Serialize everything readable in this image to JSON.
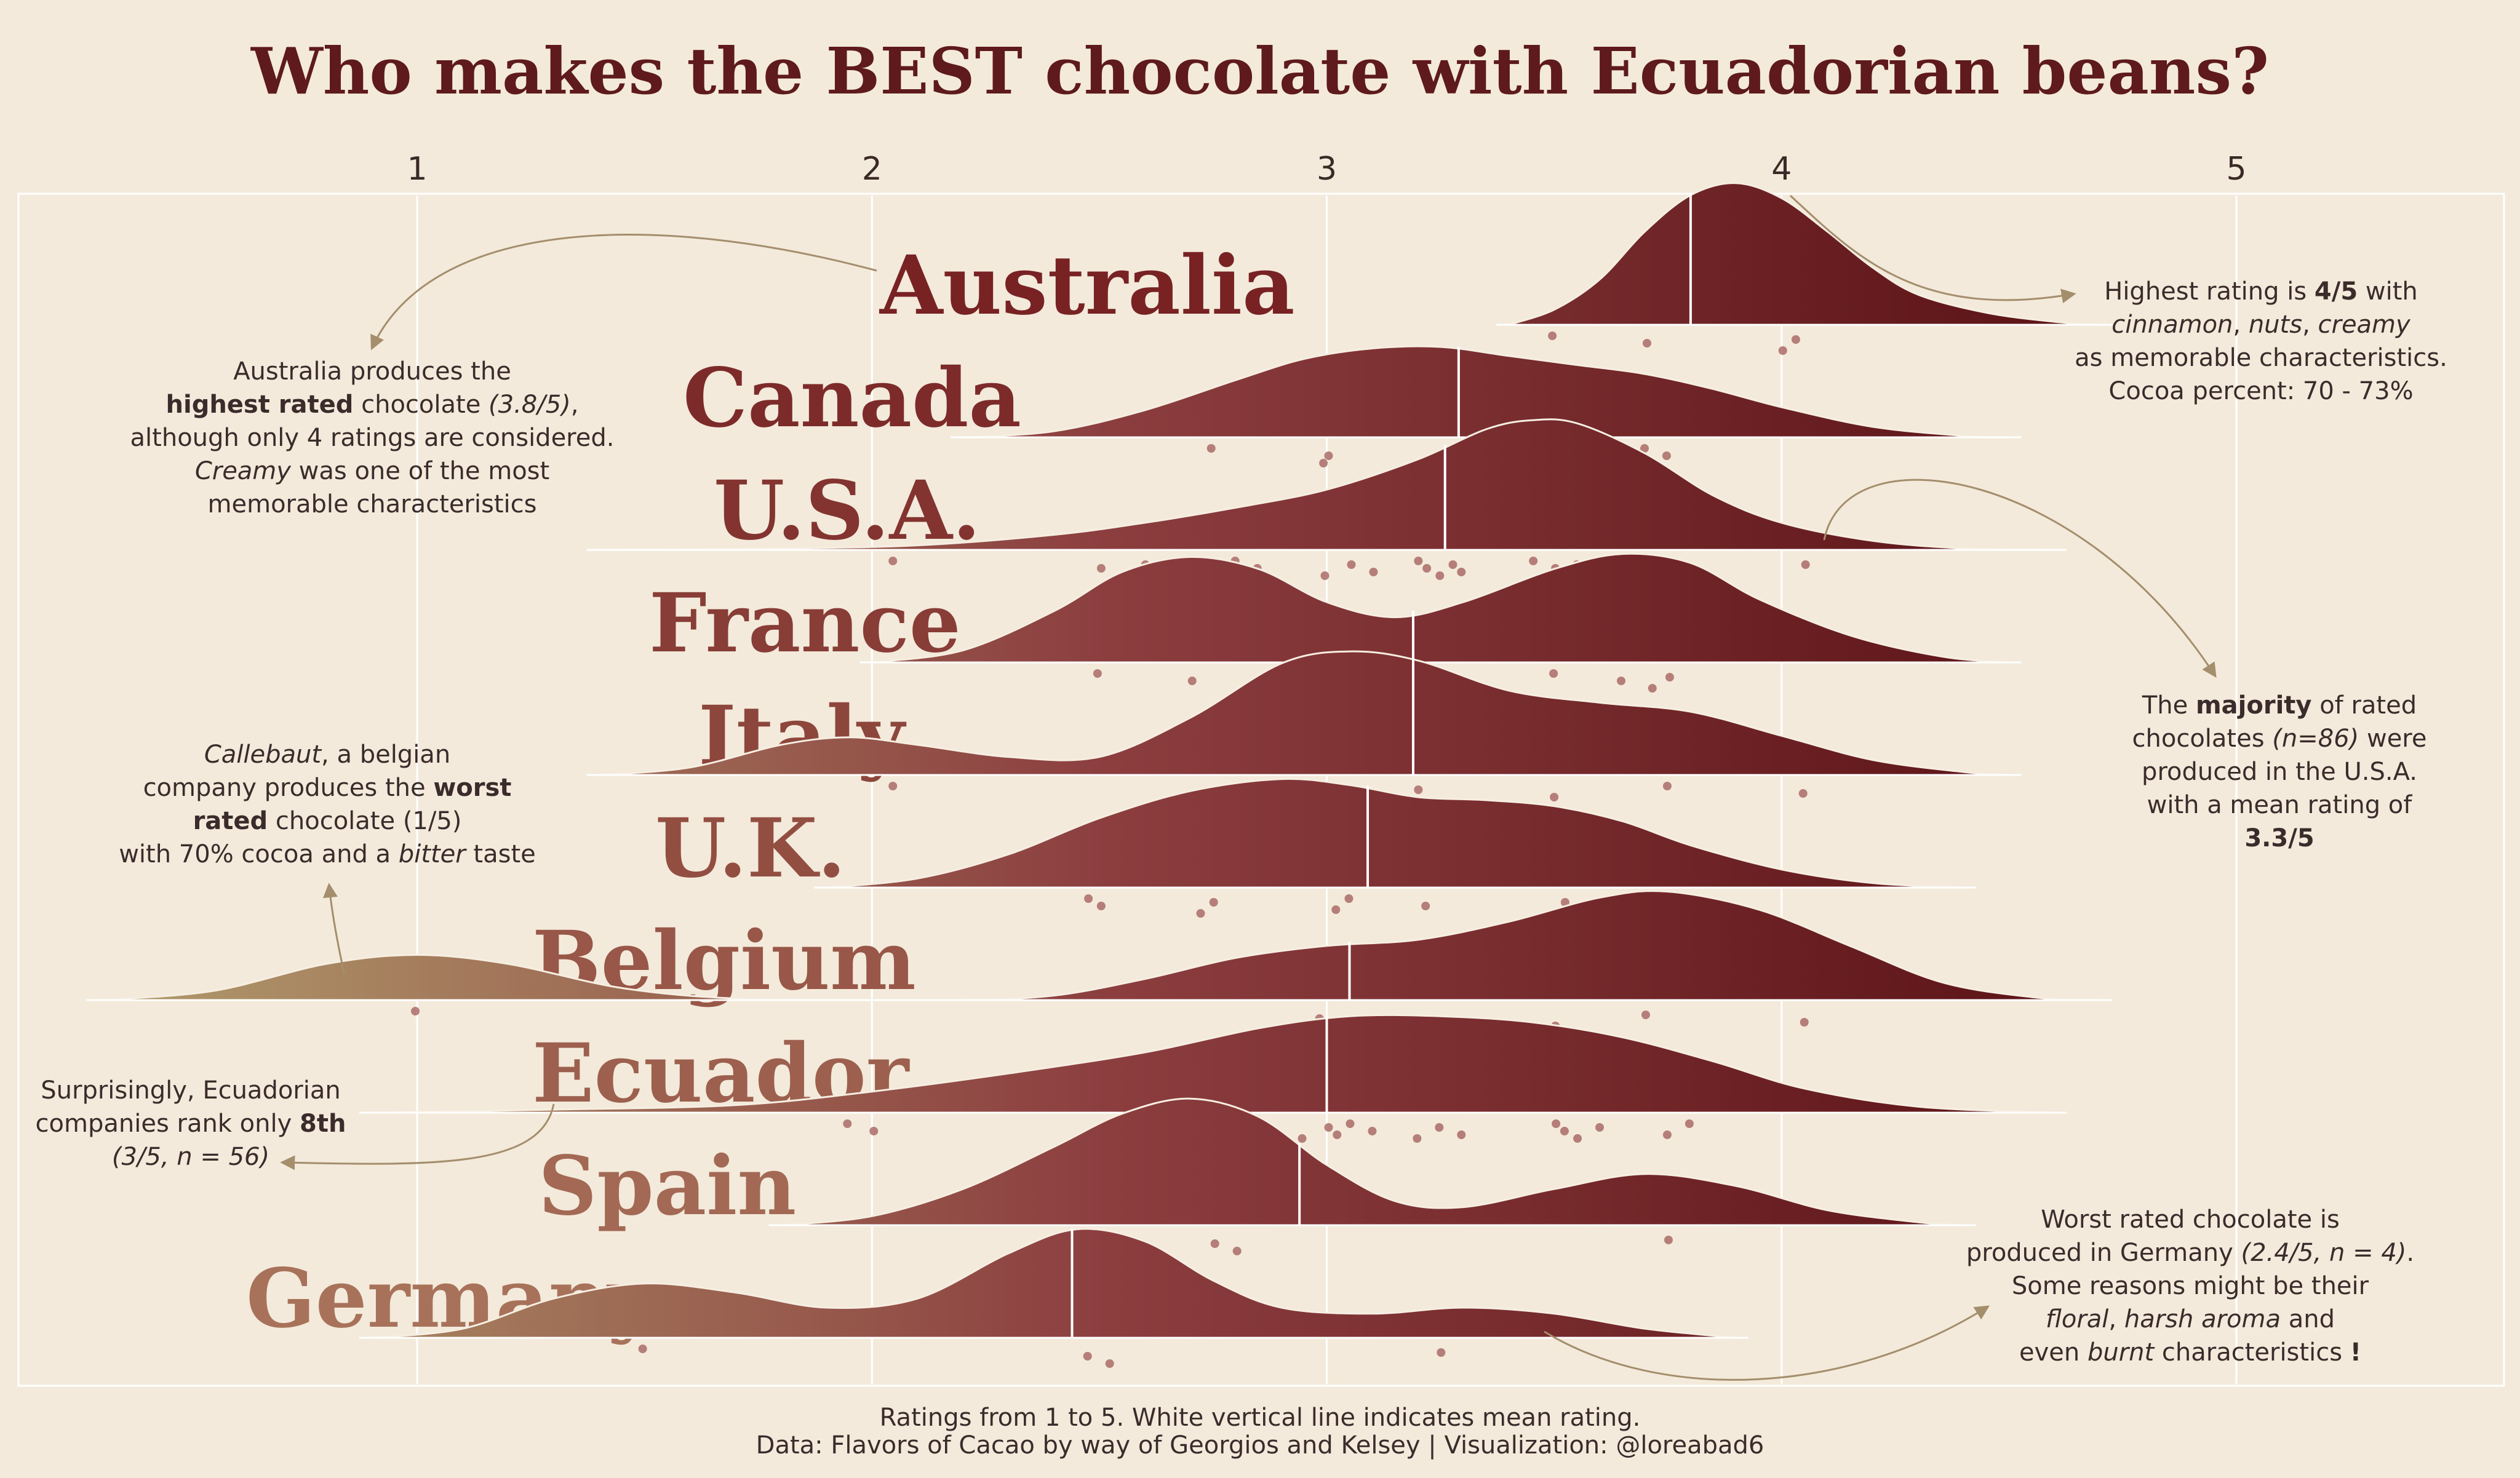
{
  "title": "Who makes the BEST chocolate with Ecuadorian beans?",
  "caption": [
    "Ratings from 1 to 5. White vertical line indicates mean rating.",
    "Data: Flavors of Cacao by way of Georgios and Kelsey | Visualization: @loreabad6"
  ],
  "colors": {
    "background": "#f3eadb",
    "gradient_low": "#b09a6b",
    "gradient_mid": "#8c3e3f",
    "gradient_high": "#5a1215",
    "title": "#5e1a1d",
    "annotation_arrow": "#a48e6c",
    "label": "#8e3f3f"
  },
  "chart_data": {
    "type": "ridgeline",
    "x_ticks": [
      "1",
      "2",
      "3",
      "4",
      "5"
    ],
    "xlim": [
      0.2,
      5.65
    ],
    "grid": true,
    "mean_line_color": "white",
    "series": [
      {
        "name": "Australia",
        "mean": 3.8,
        "range": [
          3.4,
          4.7
        ],
        "points": [
          3.5,
          3.7,
          4.0,
          4.03
        ],
        "density": [
          [
            3.4,
            0.0
          ],
          [
            3.5,
            0.1
          ],
          [
            3.6,
            0.3
          ],
          [
            3.7,
            0.62
          ],
          [
            3.8,
            0.86
          ],
          [
            3.9,
            0.94
          ],
          [
            4.0,
            0.84
          ],
          [
            4.1,
            0.62
          ],
          [
            4.2,
            0.38
          ],
          [
            4.3,
            0.2
          ],
          [
            4.45,
            0.08
          ],
          [
            4.6,
            0.02
          ],
          [
            4.7,
            0.0
          ]
        ]
      },
      {
        "name": "Canada",
        "mean": 3.29,
        "range": [
          2.2,
          4.5
        ],
        "points": [
          2.75,
          3.0,
          2.99,
          3.27,
          3.5,
          3.7,
          3.75
        ],
        "density": [
          [
            2.2,
            0.0
          ],
          [
            2.4,
            0.04
          ],
          [
            2.6,
            0.18
          ],
          [
            2.8,
            0.38
          ],
          [
            2.95,
            0.52
          ],
          [
            3.1,
            0.59
          ],
          [
            3.25,
            0.6
          ],
          [
            3.4,
            0.54
          ],
          [
            3.55,
            0.48
          ],
          [
            3.7,
            0.42
          ],
          [
            3.85,
            0.32
          ],
          [
            4.0,
            0.2
          ],
          [
            4.2,
            0.07
          ],
          [
            4.4,
            0.01
          ],
          [
            4.5,
            0.0
          ]
        ]
      },
      {
        "name": "U.S.A.",
        "mean": 3.26,
        "range": [
          1.4,
          4.6
        ],
        "points": [
          2.05,
          2.5,
          2.55,
          2.6,
          2.75,
          2.8,
          2.85,
          3.0,
          3.05,
          3.1,
          3.2,
          3.22,
          3.25,
          3.28,
          3.3,
          3.45,
          3.5,
          3.52,
          3.55,
          3.58,
          3.6,
          3.75,
          3.8,
          4.05
        ],
        "density": [
          [
            1.4,
            0.0
          ],
          [
            1.8,
            0.01
          ],
          [
            2.1,
            0.03
          ],
          [
            2.4,
            0.1
          ],
          [
            2.6,
            0.18
          ],
          [
            2.8,
            0.28
          ],
          [
            3.0,
            0.4
          ],
          [
            3.2,
            0.6
          ],
          [
            3.35,
            0.8
          ],
          [
            3.45,
            0.86
          ],
          [
            3.55,
            0.84
          ],
          [
            3.7,
            0.64
          ],
          [
            3.85,
            0.36
          ],
          [
            4.0,
            0.18
          ],
          [
            4.2,
            0.06
          ],
          [
            4.4,
            0.01
          ],
          [
            4.6,
            0.0
          ]
        ]
      },
      {
        "name": "France",
        "mean": 3.19,
        "range": [
          2.0,
          4.5
        ],
        "points": [
          2.5,
          2.7,
          2.85,
          2.86,
          3.25,
          3.5,
          3.65,
          3.72,
          3.75
        ],
        "density": [
          [
            2.0,
            0.0
          ],
          [
            2.2,
            0.08
          ],
          [
            2.4,
            0.34
          ],
          [
            2.55,
            0.6
          ],
          [
            2.7,
            0.7
          ],
          [
            2.85,
            0.62
          ],
          [
            3.0,
            0.4
          ],
          [
            3.15,
            0.3
          ],
          [
            3.3,
            0.4
          ],
          [
            3.5,
            0.62
          ],
          [
            3.65,
            0.72
          ],
          [
            3.8,
            0.66
          ],
          [
            3.95,
            0.42
          ],
          [
            4.15,
            0.18
          ],
          [
            4.35,
            0.04
          ],
          [
            4.5,
            0.0
          ]
        ]
      },
      {
        "name": "Italy",
        "mean": 3.19,
        "range": [
          1.4,
          4.5
        ],
        "points": [
          2.05,
          3.0,
          3.02,
          3.2,
          3.5,
          3.75,
          4.05
        ],
        "density": [
          [
            1.4,
            0.0
          ],
          [
            1.6,
            0.05
          ],
          [
            1.8,
            0.2
          ],
          [
            1.95,
            0.25
          ],
          [
            2.1,
            0.2
          ],
          [
            2.3,
            0.12
          ],
          [
            2.5,
            0.12
          ],
          [
            2.7,
            0.38
          ],
          [
            2.9,
            0.74
          ],
          [
            3.05,
            0.82
          ],
          [
            3.2,
            0.76
          ],
          [
            3.4,
            0.56
          ],
          [
            3.6,
            0.48
          ],
          [
            3.8,
            0.42
          ],
          [
            4.0,
            0.26
          ],
          [
            4.2,
            0.1
          ],
          [
            4.4,
            0.02
          ],
          [
            4.5,
            0.0
          ]
        ]
      },
      {
        "name": "U.K.",
        "mean": 3.09,
        "range": [
          1.9,
          4.4
        ],
        "points": [
          2.48,
          2.5,
          2.72,
          2.75,
          3.02,
          3.05,
          3.22,
          3.5,
          3.52,
          3.55,
          3.7
        ],
        "density": [
          [
            1.9,
            0.0
          ],
          [
            2.1,
            0.06
          ],
          [
            2.3,
            0.22
          ],
          [
            2.5,
            0.46
          ],
          [
            2.7,
            0.64
          ],
          [
            2.9,
            0.72
          ],
          [
            3.05,
            0.68
          ],
          [
            3.2,
            0.6
          ],
          [
            3.35,
            0.58
          ],
          [
            3.5,
            0.54
          ],
          [
            3.65,
            0.44
          ],
          [
            3.8,
            0.28
          ],
          [
            4.0,
            0.12
          ],
          [
            4.2,
            0.03
          ],
          [
            4.4,
            0.0
          ]
        ]
      },
      {
        "name": "Belgium",
        "mean": 3.05,
        "range": [
          0.3,
          4.7
        ],
        "points": [
          1.0,
          2.98,
          3.5,
          3.7,
          4.05
        ],
        "density": [
          [
            0.3,
            0.0
          ],
          [
            0.55,
            0.06
          ],
          [
            0.8,
            0.24
          ],
          [
            1.0,
            0.3
          ],
          [
            1.2,
            0.24
          ],
          [
            1.45,
            0.08
          ],
          [
            1.7,
            0.01
          ],
          [
            2.0,
            0.0
          ],
          [
            2.2,
            0.0
          ],
          [
            2.4,
            0.03
          ],
          [
            2.6,
            0.14
          ],
          [
            2.8,
            0.28
          ],
          [
            3.0,
            0.36
          ],
          [
            3.2,
            0.4
          ],
          [
            3.4,
            0.52
          ],
          [
            3.6,
            0.68
          ],
          [
            3.75,
            0.72
          ],
          [
            3.95,
            0.6
          ],
          [
            4.15,
            0.36
          ],
          [
            4.35,
            0.12
          ],
          [
            4.55,
            0.02
          ],
          [
            4.7,
            0.0
          ]
        ]
      },
      {
        "name": "Ecuador",
        "mean": 3.0,
        "range": [
          0.9,
          4.6
        ],
        "points": [
          1.95,
          2.0,
          2.5,
          2.52,
          2.55,
          2.75,
          2.8,
          2.95,
          3.0,
          3.02,
          3.05,
          3.1,
          3.2,
          3.25,
          3.3,
          3.5,
          3.52,
          3.55,
          3.6,
          3.75,
          3.8
        ],
        "density": [
          [
            0.9,
            0.0
          ],
          [
            1.3,
            0.02
          ],
          [
            1.7,
            0.05
          ],
          [
            2.0,
            0.14
          ],
          [
            2.3,
            0.26
          ],
          [
            2.6,
            0.4
          ],
          [
            2.85,
            0.56
          ],
          [
            3.05,
            0.64
          ],
          [
            3.25,
            0.64
          ],
          [
            3.45,
            0.6
          ],
          [
            3.65,
            0.5
          ],
          [
            3.85,
            0.34
          ],
          [
            4.05,
            0.16
          ],
          [
            4.3,
            0.04
          ],
          [
            4.6,
            0.0
          ]
        ]
      },
      {
        "name": "Spain",
        "mean": 2.94,
        "range": [
          1.8,
          4.4
        ],
        "points": [
          2.48,
          2.75,
          2.8,
          3.75
        ],
        "density": [
          [
            1.8,
            0.0
          ],
          [
            2.0,
            0.06
          ],
          [
            2.2,
            0.24
          ],
          [
            2.4,
            0.52
          ],
          [
            2.55,
            0.74
          ],
          [
            2.7,
            0.84
          ],
          [
            2.85,
            0.72
          ],
          [
            3.0,
            0.4
          ],
          [
            3.15,
            0.16
          ],
          [
            3.3,
            0.12
          ],
          [
            3.5,
            0.24
          ],
          [
            3.7,
            0.34
          ],
          [
            3.9,
            0.26
          ],
          [
            4.1,
            0.1
          ],
          [
            4.3,
            0.02
          ],
          [
            4.4,
            0.0
          ]
        ]
      },
      {
        "name": "Germany",
        "mean": 2.44,
        "range": [
          0.9,
          3.9
        ],
        "points": [
          1.5,
          2.47,
          2.52,
          3.25
        ],
        "density": [
          [
            0.9,
            0.0
          ],
          [
            1.1,
            0.06
          ],
          [
            1.3,
            0.26
          ],
          [
            1.5,
            0.36
          ],
          [
            1.7,
            0.3
          ],
          [
            1.9,
            0.2
          ],
          [
            2.1,
            0.26
          ],
          [
            2.3,
            0.56
          ],
          [
            2.45,
            0.72
          ],
          [
            2.6,
            0.64
          ],
          [
            2.75,
            0.38
          ],
          [
            2.9,
            0.2
          ],
          [
            3.1,
            0.16
          ],
          [
            3.3,
            0.2
          ],
          [
            3.5,
            0.16
          ],
          [
            3.7,
            0.06
          ],
          [
            3.9,
            0.0
          ]
        ]
      }
    ]
  },
  "annotations": {
    "australia_note": [
      [
        {
          "t": "Australia produces the"
        }
      ],
      [
        {
          "t": "highest rated",
          "b": true
        },
        {
          "t": " chocolate "
        },
        {
          "t": "(3.8/5)",
          "i": true
        },
        {
          "t": ","
        }
      ],
      [
        {
          "t": "although only 4 ratings are considered."
        }
      ],
      [
        {
          "t": "Creamy",
          "i": true
        },
        {
          "t": " was one of the most"
        }
      ],
      [
        {
          "t": "memorable characteristics"
        }
      ]
    ],
    "top_right_note": [
      [
        {
          "t": "Highest rating is "
        },
        {
          "t": "4/5",
          "b": true
        },
        {
          "t": " with"
        }
      ],
      [
        {
          "t": "cinnamon",
          "i": true
        },
        {
          "t": ", "
        },
        {
          "t": "nuts",
          "i": true
        },
        {
          "t": ", "
        },
        {
          "t": "creamy",
          "i": true
        }
      ],
      [
        {
          "t": "as memorable characteristics."
        }
      ],
      [
        {
          "t": "Cocoa percent: 70 - 73%"
        }
      ]
    ],
    "usa_note": [
      [
        {
          "t": "The "
        },
        {
          "t": "majority",
          "b": true
        },
        {
          "t": " of rated"
        }
      ],
      [
        {
          "t": "chocolates "
        },
        {
          "t": "(n=86)",
          "i": true
        },
        {
          "t": " were"
        }
      ],
      [
        {
          "t": "produced in the U.S.A."
        }
      ],
      [
        {
          "t": "with a mean rating of"
        }
      ],
      [
        {
          "t": "3.3/5",
          "b": true
        }
      ]
    ],
    "belgium_note": [
      [
        {
          "t": "Callebaut",
          "i": true
        },
        {
          "t": ", a belgian"
        }
      ],
      [
        {
          "t": "company produces the "
        },
        {
          "t": "worst",
          "b": true
        }
      ],
      [
        {
          "t": "rated",
          "b": true
        },
        {
          "t": " chocolate (1/5)"
        }
      ],
      [
        {
          "t": "with 70% cocoa and a "
        },
        {
          "t": "bitter",
          "i": true
        },
        {
          "t": " taste"
        }
      ]
    ],
    "ecuador_note": [
      [
        {
          "t": "Surprisingly, Ecuadorian"
        }
      ],
      [
        {
          "t": "companies rank only "
        },
        {
          "t": "8th",
          "b": true
        }
      ],
      [
        {
          "t": "(3/5, n = 56)",
          "i": true
        }
      ]
    ],
    "germany_note": [
      [
        {
          "t": "Worst rated chocolate is"
        }
      ],
      [
        {
          "t": "produced in Germany "
        },
        {
          "t": "(2.4/5, n = 4)",
          "i": true
        },
        {
          "t": "."
        }
      ],
      [
        {
          "t": "Some reasons might be their"
        }
      ],
      [
        {
          "t": "floral",
          "i": true
        },
        {
          "t": ", "
        },
        {
          "t": "harsh aroma",
          "i": true
        },
        {
          "t": " and"
        }
      ],
      [
        {
          "t": "even "
        },
        {
          "t": "burnt",
          "i": true
        },
        {
          "t": " characteristics "
        },
        {
          "t": "!",
          "b": true
        }
      ]
    ]
  }
}
